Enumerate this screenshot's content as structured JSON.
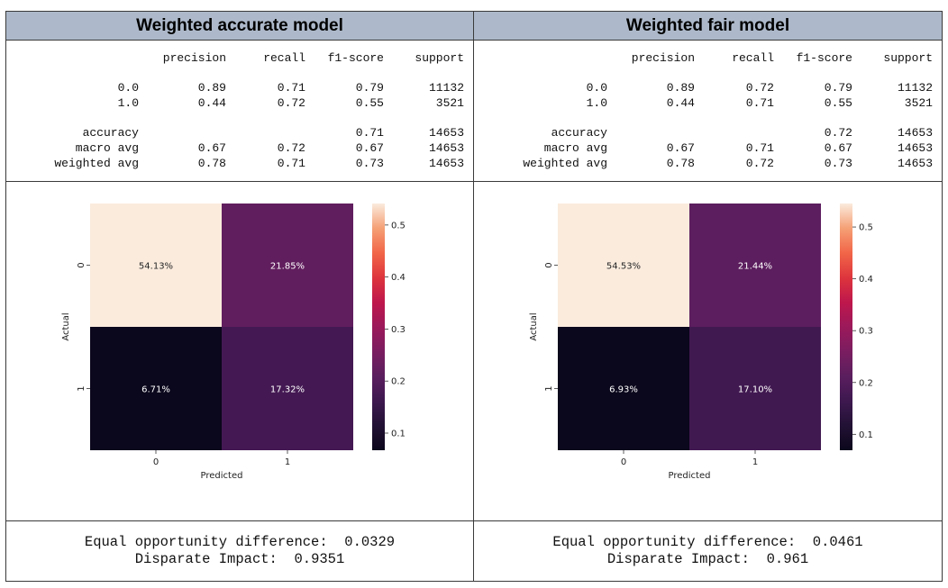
{
  "panels": [
    {
      "title": "Weighted accurate model",
      "report": {
        "headers": [
          "precision",
          "recall",
          "f1-score",
          "support"
        ],
        "rows": [
          {
            "label": "0.0",
            "precision": "0.89",
            "recall": "0.71",
            "f1": "0.79",
            "support": "11132"
          },
          {
            "label": "1.0",
            "precision": "0.44",
            "recall": "0.72",
            "f1": "0.55",
            "support": "3521"
          }
        ],
        "summary": [
          {
            "label": "accuracy",
            "precision": "",
            "recall": "",
            "f1": "0.71",
            "support": "14653"
          },
          {
            "label": "macro avg",
            "precision": "0.67",
            "recall": "0.72",
            "f1": "0.67",
            "support": "14653"
          },
          {
            "label": "weighted avg",
            "precision": "0.78",
            "recall": "0.71",
            "f1": "0.73",
            "support": "14653"
          }
        ]
      },
      "fairness": {
        "eod_label": "Equal opportunity difference:",
        "eod_value": "0.0329",
        "di_label": "Disparate Impact:",
        "di_value": "0.9351"
      }
    },
    {
      "title": "Weighted fair model",
      "report": {
        "headers": [
          "precision",
          "recall",
          "f1-score",
          "support"
        ],
        "rows": [
          {
            "label": "0.0",
            "precision": "0.89",
            "recall": "0.72",
            "f1": "0.79",
            "support": "11132"
          },
          {
            "label": "1.0",
            "precision": "0.44",
            "recall": "0.71",
            "f1": "0.55",
            "support": "3521"
          }
        ],
        "summary": [
          {
            "label": "accuracy",
            "precision": "",
            "recall": "",
            "f1": "0.72",
            "support": "14653"
          },
          {
            "label": "macro avg",
            "precision": "0.67",
            "recall": "0.71",
            "f1": "0.67",
            "support": "14653"
          },
          {
            "label": "weighted avg",
            "precision": "0.78",
            "recall": "0.72",
            "f1": "0.73",
            "support": "14653"
          }
        ]
      },
      "fairness": {
        "eod_label": "Equal opportunity difference:",
        "eod_value": "0.0461",
        "di_label": "Disparate Impact:",
        "di_value": "0.961"
      }
    }
  ],
  "chart_data": [
    {
      "type": "heatmap",
      "xlabel": "Predicted",
      "ylabel": "Actual",
      "x_categories": [
        "0",
        "1"
      ],
      "y_categories": [
        "0",
        "1"
      ],
      "values": [
        [
          0.5413,
          0.2185
        ],
        [
          0.0671,
          0.1732
        ]
      ],
      "annotations": [
        [
          "54.13%",
          "21.85%"
        ],
        [
          "6.71%",
          "17.32%"
        ]
      ],
      "colorbar": {
        "ticks": [
          0.1,
          0.2,
          0.3,
          0.4,
          0.5
        ],
        "tick_labels": [
          "0.1",
          "0.2",
          "0.3",
          "0.4",
          "0.5"
        ],
        "range": [
          0.0671,
          0.5413
        ]
      },
      "colormap": "rocket"
    },
    {
      "type": "heatmap",
      "xlabel": "Predicted",
      "ylabel": "Actual",
      "x_categories": [
        "0",
        "1"
      ],
      "y_categories": [
        "0",
        "1"
      ],
      "values": [
        [
          0.5453,
          0.2144
        ],
        [
          0.0693,
          0.171
        ]
      ],
      "annotations": [
        [
          "54.53%",
          "21.44%"
        ],
        [
          "6.93%",
          "17.10%"
        ]
      ],
      "colorbar": {
        "ticks": [
          0.1,
          0.2,
          0.3,
          0.4,
          0.5
        ],
        "tick_labels": [
          "0.1",
          "0.2",
          "0.3",
          "0.4",
          "0.5"
        ],
        "range": [
          0.0693,
          0.5453
        ]
      },
      "colormap": "rocket"
    }
  ]
}
